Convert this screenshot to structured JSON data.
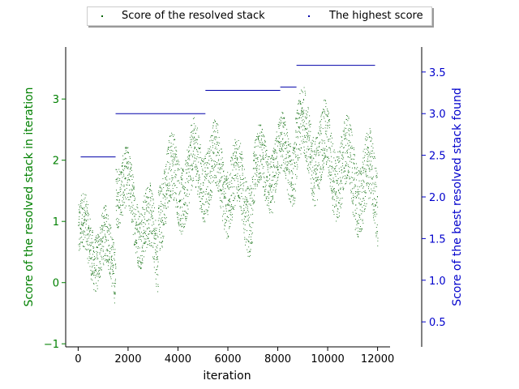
{
  "chart_data": {
    "type": "scatter",
    "xlabel": "iteration",
    "ylabel_left": "Score of the resolved stack in iteration",
    "ylabel_right": "Score of the best resolved stack found",
    "xlim": [
      -500,
      12500
    ],
    "ylim_left": [
      -1.05,
      3.85
    ],
    "ylim_right": [
      0.2,
      3.8
    ],
    "x_ticks": [
      0,
      2000,
      4000,
      6000,
      8000,
      10000,
      12000
    ],
    "y_ticks_left": [
      -1,
      0,
      1,
      2,
      3
    ],
    "y_ticks_right": [
      0.5,
      1.0,
      1.5,
      2.0,
      2.5,
      3.0,
      3.5
    ],
    "grid": false,
    "legend_position": "top-center",
    "colors": {
      "left_axis": "#008000",
      "right_axis": "#0000cc",
      "resolved": "#006400",
      "highest": "#0000aa"
    },
    "series": [
      {
        "name": "Score of the resolved stack",
        "axis": "left",
        "note_envelope": "dense scatter, values within segment ranges",
        "segments": [
          {
            "x": [
              0,
              1500
            ],
            "low": [
              -0.3,
              -0.75
            ],
            "high": [
              1.9,
              1.5
            ]
          },
          {
            "x": [
              1500,
              3200
            ],
            "low": [
              0.6,
              -0.75
            ],
            "high": [
              2.9,
              1.8
            ]
          },
          {
            "x": [
              3200,
              5100
            ],
            "low": [
              0.1,
              0.6
            ],
            "high": [
              2.8,
              3.2
            ]
          },
          {
            "x": [
              5100,
              7000
            ],
            "low": [
              0.6,
              -0.05
            ],
            "high": [
              3.2,
              2.7
            ]
          },
          {
            "x": [
              7000,
              8700
            ],
            "low": [
              0.6,
              0.9
            ],
            "high": [
              2.9,
              3.3
            ]
          },
          {
            "x": [
              8700,
              12000
            ],
            "low": [
              1.1,
              0.0
            ],
            "high": [
              3.7,
              2.9
            ]
          }
        ]
      },
      {
        "name": "The highest score",
        "axis": "right",
        "steps": [
          {
            "x0": 100,
            "x1": 1500,
            "y": 2.48
          },
          {
            "x0": 1500,
            "x1": 5100,
            "y": 3.0
          },
          {
            "x0": 5100,
            "x1": 8100,
            "y": 3.28
          },
          {
            "x0": 8100,
            "x1": 8750,
            "y": 3.32
          },
          {
            "x0": 8750,
            "x1": 11900,
            "y": 3.58
          }
        ]
      }
    ]
  }
}
